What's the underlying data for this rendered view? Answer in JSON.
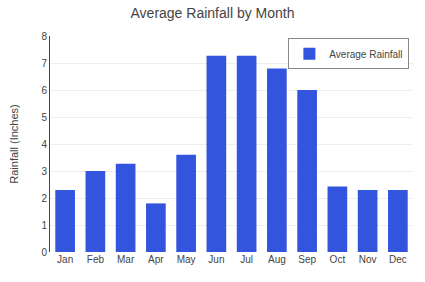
{
  "chart_data": {
    "type": "bar",
    "title": "Average Rainfall by Month",
    "ylabel": "Rainfall (Inches)",
    "categories": [
      "Jan",
      "Feb",
      "Mar",
      "Apr",
      "May",
      "Jun",
      "Jul",
      "Aug",
      "Sep",
      "Oct",
      "Nov",
      "Dec"
    ],
    "series": [
      {
        "name": "Average Rainfall",
        "color": "#3355dd",
        "values": [
          2.3,
          3.0,
          3.27,
          1.8,
          3.6,
          7.27,
          7.27,
          6.8,
          6.0,
          2.43,
          2.3,
          2.3
        ]
      }
    ],
    "ylim": [
      0,
      8
    ],
    "yticks": [
      0,
      1,
      2,
      3,
      4,
      5,
      6,
      7,
      8
    ],
    "grid": true,
    "legend": "upper right"
  }
}
